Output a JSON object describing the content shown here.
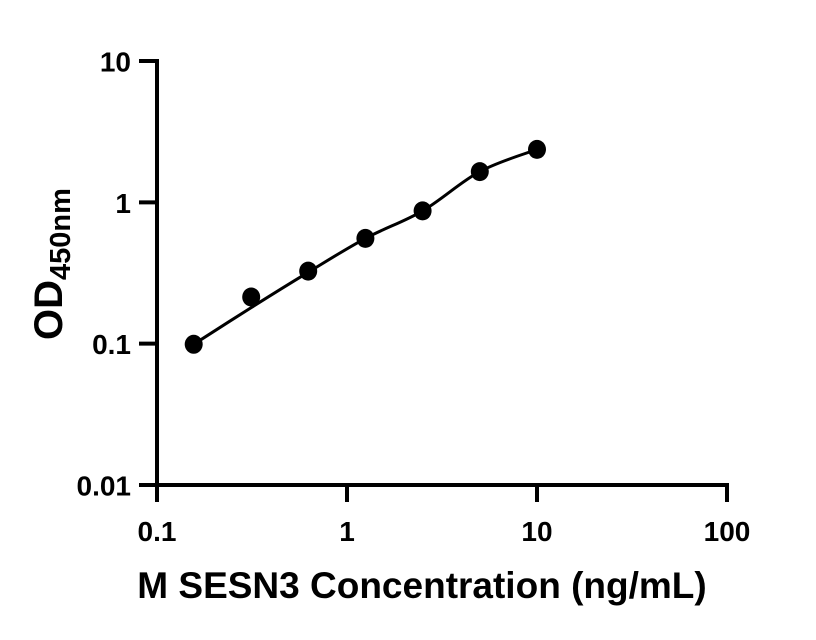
{
  "figure": {
    "background_color": "#ffffff"
  },
  "chart_data": {
    "type": "scatter",
    "title": "",
    "xlabel": "M SESN3 Concentration (ng/mL)",
    "ylabel_main": "OD",
    "ylabel_sub": "450nm",
    "x_scale": "log10",
    "y_scale": "log10",
    "x_range": [
      0.1,
      100
    ],
    "y_range": [
      0.01,
      10
    ],
    "x_ticks": {
      "values": [
        0.1,
        1,
        10,
        100
      ],
      "labels": [
        "0.1",
        "1",
        "10",
        "100"
      ]
    },
    "y_ticks": {
      "values": [
        10,
        1,
        0.1,
        0.01
      ],
      "labels": [
        "10",
        "1",
        "0.1",
        "0.01"
      ]
    },
    "grid": false,
    "legend": false,
    "axis_color": "#000000",
    "marker_color": "#000000",
    "line_color": "#000000",
    "points": [
      {
        "x": 0.156,
        "y": 0.099
      },
      {
        "x": 0.313,
        "y": 0.214
      },
      {
        "x": 0.625,
        "y": 0.326
      },
      {
        "x": 1.25,
        "y": 0.556
      },
      {
        "x": 2.5,
        "y": 0.87
      },
      {
        "x": 5,
        "y": 1.65
      },
      {
        "x": 10,
        "y": 2.37
      }
    ],
    "fit_line": [
      {
        "x": 0.156,
        "y": 0.099
      },
      {
        "x": 0.313,
        "y": 0.18
      },
      {
        "x": 0.625,
        "y": 0.32
      },
      {
        "x": 1.25,
        "y": 0.556
      },
      {
        "x": 2.5,
        "y": 0.87
      },
      {
        "x": 5,
        "y": 1.65
      },
      {
        "x": 10,
        "y": 2.37
      }
    ]
  }
}
